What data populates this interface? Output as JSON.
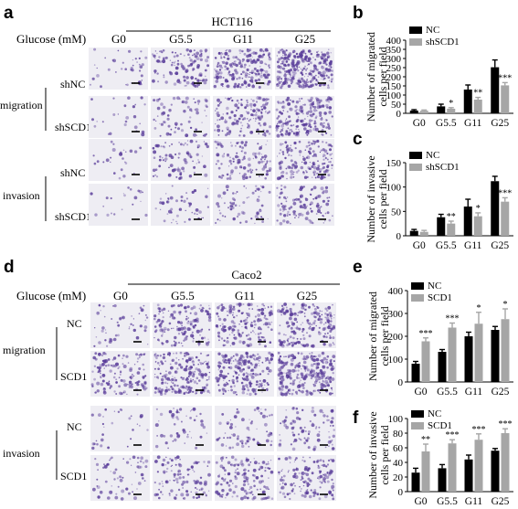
{
  "panels": {
    "a": {
      "letter": "a",
      "cell_line": "HCT116",
      "glucose_label": "Glucose (mM)",
      "columns": [
        "G0",
        "G5.5",
        "G11",
        "G25"
      ],
      "groups": [
        {
          "name": "migration",
          "rows": [
            "shNC",
            "shSCD1"
          ]
        },
        {
          "name": "invasion",
          "rows": [
            "shNC",
            "shSCD1"
          ]
        }
      ]
    },
    "d": {
      "letter": "d",
      "cell_line": "Caco2",
      "glucose_label": "Glucose (mM)",
      "columns": [
        "G0",
        "G5.5",
        "G11",
        "G25"
      ],
      "groups": [
        {
          "name": "migration",
          "rows": [
            "NC",
            "SCD1"
          ]
        },
        {
          "name": "invasion",
          "rows": [
            "NC",
            "SCD1"
          ]
        }
      ]
    }
  },
  "colors": {
    "control": "#000000",
    "treatment": "#a6a6a6",
    "stain": "#5a3d9a",
    "field_bg": "#eeedf3"
  },
  "chart_data": [
    {
      "id": "b",
      "letter": "b",
      "type": "bar",
      "categories": [
        "G0",
        "G5.5",
        "G11",
        "G25"
      ],
      "ylabel_line1": "Number of migrated",
      "ylabel_line2": "cells per field",
      "ylim": [
        0,
        400
      ],
      "yticks": [
        "0",
        "50",
        "100",
        "150",
        "200",
        "250",
        "300",
        "350",
        "400"
      ],
      "series": [
        {
          "name": "NC",
          "values": [
            15,
            38,
            130,
            252
          ],
          "errors": [
            5,
            12,
            25,
            40
          ]
        },
        {
          "name": "shSCD1",
          "values": [
            14,
            25,
            75,
            153
          ],
          "errors": [
            4,
            6,
            12,
            15
          ]
        }
      ],
      "significance": [
        "",
        "*",
        "**",
        "***"
      ]
    },
    {
      "id": "c",
      "letter": "c",
      "type": "bar",
      "categories": [
        "G0",
        "G5.5",
        "G11",
        "G25"
      ],
      "ylabel_line1": "Number of invasive",
      "ylabel_line2": "cells per field",
      "ylim": [
        0,
        150
      ],
      "yticks": [
        "0",
        "50",
        "100",
        "150"
      ],
      "series": [
        {
          "name": "NC",
          "values": [
            10,
            38,
            60,
            112
          ],
          "errors": [
            3,
            6,
            15,
            10
          ]
        },
        {
          "name": "shSCD1",
          "values": [
            8,
            25,
            40,
            70
          ],
          "errors": [
            3,
            5,
            7,
            8
          ]
        }
      ],
      "significance": [
        "",
        "**",
        "*",
        "***"
      ]
    },
    {
      "id": "e",
      "letter": "e",
      "type": "bar",
      "categories": [
        "G0",
        "G5.5",
        "G11",
        "G25"
      ],
      "ylabel_line1": "Number of migrated",
      "ylabel_line2": "cells per field",
      "ylim": [
        0,
        400
      ],
      "yticks": [
        "0",
        "100",
        "200",
        "300",
        "400"
      ],
      "series": [
        {
          "name": "NC",
          "values": [
            80,
            132,
            200,
            228
          ],
          "errors": [
            10,
            10,
            18,
            15
          ]
        },
        {
          "name": "SCD1",
          "values": [
            178,
            238,
            255,
            275
          ],
          "errors": [
            15,
            20,
            50,
            45
          ]
        }
      ],
      "significance": [
        "***",
        "***",
        "*",
        "*"
      ]
    },
    {
      "id": "f",
      "letter": "f",
      "type": "bar",
      "categories": [
        "G0",
        "G5.5",
        "G11",
        "G25"
      ],
      "ylabel_line1": "Number of invasive",
      "ylabel_line2": "cells per field",
      "ylim": [
        0,
        100
      ],
      "yticks": [
        "0",
        "20",
        "40",
        "60",
        "80",
        "100"
      ],
      "series": [
        {
          "name": "NC",
          "values": [
            26,
            32,
            44,
            56
          ],
          "errors": [
            6,
            5,
            6,
            3
          ]
        },
        {
          "name": "SCD1",
          "values": [
            55,
            66,
            71,
            80
          ],
          "errors": [
            10,
            5,
            8,
            6
          ]
        }
      ],
      "significance": [
        "**",
        "***",
        "***",
        "***"
      ]
    }
  ]
}
